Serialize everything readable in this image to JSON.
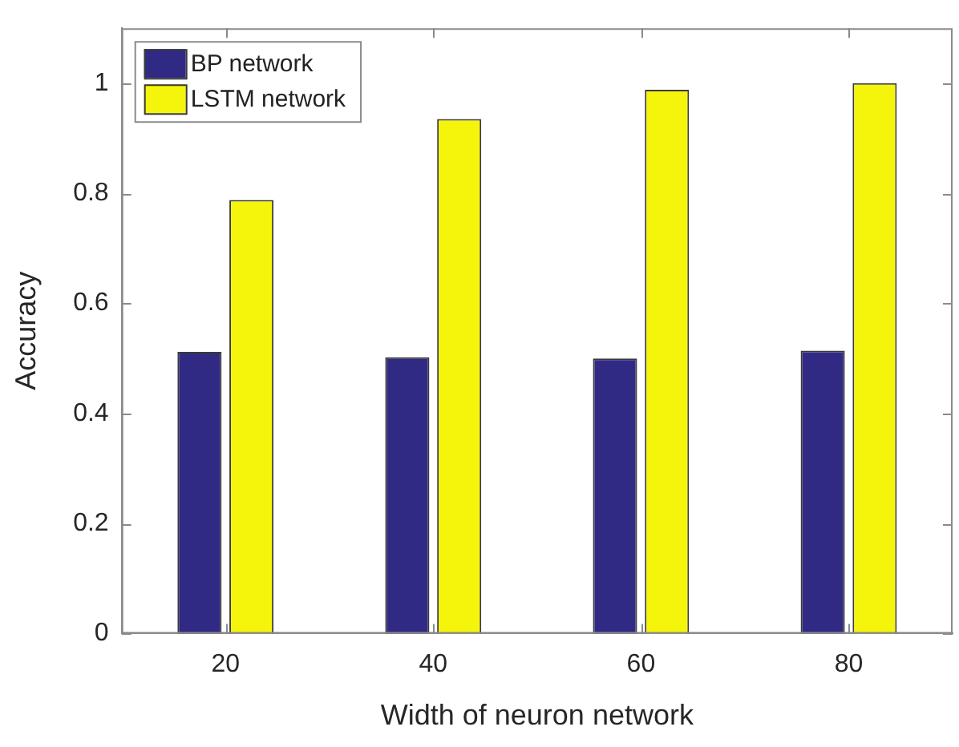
{
  "chart_data": {
    "type": "bar",
    "xlabel": "Width of neuron network",
    "ylabel": "Accuracy",
    "categories": [
      "20",
      "40",
      "60",
      "80"
    ],
    "series": [
      {
        "name": "BP network",
        "color": "#312a84",
        "values": [
          0.512,
          0.502,
          0.5,
          0.514
        ]
      },
      {
        "name": "LSTM network",
        "color": "#f5f50c",
        "values": [
          0.788,
          0.935,
          0.988,
          1.0
        ]
      }
    ],
    "ylim": [
      0,
      1.1
    ],
    "yticks": [
      0,
      0.2,
      0.4,
      0.6,
      0.8,
      1
    ],
    "grid": false,
    "legend": "top left"
  }
}
